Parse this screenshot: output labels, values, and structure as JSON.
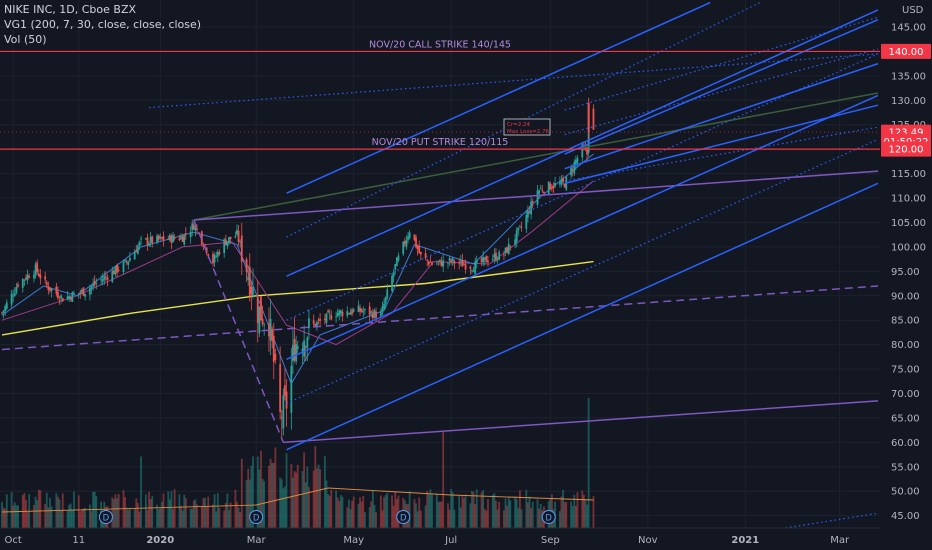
{
  "legend": {
    "line1": "NIKE INC, 1D, Cboe BZX",
    "line2": "VG1 (200, 7, 30, close, close, close)",
    "line3": "Vol (50)"
  },
  "annotations": {
    "call_strike": "NOV/20 CALL STRIKE 140/145",
    "put_strike": "NOV/20 PUT STRIKE 120/115",
    "box_line1": "Cr=2.24",
    "box_line2": "Max Loss=2.76"
  },
  "colors": {
    "background": "#131722",
    "grid": "#1e222d",
    "up": "#26a69a",
    "down": "#ef5350",
    "channel": "#2962ff",
    "channel_light": "#3d7bff",
    "purple": "#7e57c2",
    "olive": "#3b5f3b",
    "ma_yellow": "#e6e34a",
    "ma_magenta": "#9c3d8a",
    "ma_blue": "#3a7bd5",
    "strike_red": "#f23645",
    "price_label": "#f23645",
    "volume_ma": "#e08a3c",
    "axis_text": "#b2b5be"
  },
  "chart_data": {
    "type": "candlestick",
    "symbol": "NIKE INC",
    "interval": "1D",
    "exchange": "Cboe BZX",
    "currency": "USD",
    "x_tick_labels": [
      "Oct",
      "11",
      "2020",
      "Mar",
      "May",
      "Jul",
      "Sep",
      "Nov",
      "2021",
      "Mar"
    ],
    "y_tick_labels": [
      "145.00",
      "140.00",
      "135.00",
      "130.00",
      "125.00",
      "120.00",
      "115.00",
      "110.00",
      "105.00",
      "100.00",
      "95.00",
      "90.00",
      "85.00",
      "80.00",
      "75.00",
      "70.00",
      "65.00",
      "60.00",
      "55.00",
      "50.00",
      "45.00"
    ],
    "y_range": [
      43.5,
      149.5
    ],
    "price_labels": [
      {
        "text": "140.00",
        "value": 140.0
      },
      {
        "text": "123.49",
        "value": 123.49
      },
      {
        "text": "01:50:22",
        "value": 121.6
      },
      {
        "text": "120.00",
        "value": 120.0
      }
    ],
    "strike_lines": [
      140.0,
      120.0
    ],
    "dividend_marker": "D",
    "dividend_markers_at": [
      "2019-11-28",
      "2020-03-01",
      "2020-06-01",
      "2020-08-31"
    ],
    "close_path": [
      [
        "2019-09-24",
        86.5
      ],
      [
        "2019-10-04",
        92.5
      ],
      [
        "2019-10-15",
        95.5
      ],
      [
        "2019-10-22",
        92.0
      ],
      [
        "2019-11-01",
        89.5
      ],
      [
        "2019-11-15",
        91.0
      ],
      [
        "2019-11-26",
        93.5
      ],
      [
        "2019-12-10",
        96.5
      ],
      [
        "2019-12-20",
        101.0
      ],
      [
        "2020-01-03",
        101.5
      ],
      [
        "2020-01-15",
        102.0
      ],
      [
        "2020-01-22",
        104.5
      ],
      [
        "2020-01-27",
        101.5
      ],
      [
        "2020-02-03",
        97.0
      ],
      [
        "2020-02-10",
        101.0
      ],
      [
        "2020-02-18",
        102.5
      ],
      [
        "2020-02-24",
        96.0
      ],
      [
        "2020-03-02",
        87.0
      ],
      [
        "2020-03-09",
        85.0
      ],
      [
        "2020-03-16",
        65.0
      ],
      [
        "2020-03-20",
        68.0
      ],
      [
        "2020-03-25",
        80.0
      ],
      [
        "2020-04-06",
        84.0
      ],
      [
        "2020-04-20",
        86.5
      ],
      [
        "2020-05-04",
        87.0
      ],
      [
        "2020-05-18",
        86.0
      ],
      [
        "2020-05-27",
        96.0
      ],
      [
        "2020-06-05",
        103.5
      ],
      [
        "2020-06-12",
        98.0
      ],
      [
        "2020-06-19",
        96.5
      ],
      [
        "2020-07-01",
        97.0
      ],
      [
        "2020-07-15",
        96.0
      ],
      [
        "2020-07-24",
        97.5
      ],
      [
        "2020-08-03",
        98.5
      ],
      [
        "2020-08-14",
        104.0
      ],
      [
        "2020-08-24",
        111.5
      ],
      [
        "2020-09-01",
        112.5
      ],
      [
        "2020-09-10",
        113.0
      ],
      [
        "2020-09-16",
        117.0
      ],
      [
        "2020-09-21",
        120.0
      ],
      [
        "2020-09-24",
        119.0
      ],
      [
        "2020-09-25",
        129.5
      ],
      [
        "2020-09-28",
        123.49
      ]
    ],
    "moving_averages": [
      {
        "name": "VG1 200",
        "color": "#e6e34a",
        "points": [
          [
            "2019-09-24",
            82.0
          ],
          [
            "2019-12-15",
            86.5
          ],
          [
            "2020-03-01",
            90.0
          ],
          [
            "2020-06-15",
            92.5
          ],
          [
            "2020-09-28",
            97.0
          ]
        ]
      },
      {
        "name": "VG1 30",
        "color": "#9c3d8a",
        "points": [
          [
            "2019-09-24",
            85.0
          ],
          [
            "2019-11-10",
            90.0
          ],
          [
            "2020-01-15",
            100.0
          ],
          [
            "2020-02-15",
            101.0
          ],
          [
            "2020-03-20",
            84.0
          ],
          [
            "2020-04-20",
            80.0
          ],
          [
            "2020-05-25",
            86.5
          ],
          [
            "2020-06-20",
            97.0
          ],
          [
            "2020-07-25",
            96.5
          ],
          [
            "2020-08-20",
            103.0
          ],
          [
            "2020-09-28",
            113.5
          ]
        ]
      },
      {
        "name": "VG1 7",
        "color": "#3a7bd5",
        "points": [
          [
            "2019-09-24",
            86.0
          ],
          [
            "2019-10-20",
            92.0
          ],
          [
            "2019-11-10",
            90.0
          ],
          [
            "2019-12-20",
            100.0
          ],
          [
            "2020-01-22",
            103.0
          ],
          [
            "2020-02-18",
            100.5
          ],
          [
            "2020-03-23",
            72.0
          ],
          [
            "2020-04-10",
            82.0
          ],
          [
            "2020-05-20",
            87.0
          ],
          [
            "2020-06-08",
            100.5
          ],
          [
            "2020-07-15",
            96.5
          ],
          [
            "2020-08-25",
            110.0
          ],
          [
            "2020-09-28",
            119.0
          ]
        ]
      }
    ],
    "trendlines": [
      {
        "from": [
          "2020-01-22",
          105.5
        ],
        "to": [
          "2021-03-25",
          131.5
        ],
        "color": "#3b5f3b",
        "style": "solid"
      },
      {
        "from": [
          "2020-01-22",
          105.5
        ],
        "to": [
          "2021-03-25",
          115.5
        ],
        "color": "#7e57c2",
        "style": "solid"
      },
      {
        "from": [
          "2020-01-22",
          105.5
        ],
        "to": [
          "2020-03-18",
          60.0
        ],
        "color": "#7e57c2",
        "style": "dashed"
      },
      {
        "from": [
          "2020-03-18",
          60.0
        ],
        "to": [
          "2021-03-25",
          68.5
        ],
        "color": "#7e57c2",
        "style": "solid"
      },
      {
        "from": [
          "2019-09-24",
          79.0
        ],
        "to": [
          "2021-03-25",
          92.0
        ],
        "color": "#7e57c2",
        "style": "dashed"
      },
      {
        "from": [
          "2020-03-20",
          58.5
        ],
        "to": [
          "2021-03-25",
          113.0
        ],
        "color": "#2962ff",
        "style": "solid"
      },
      {
        "from": [
          "2020-03-20",
          77.0
        ],
        "to": [
          "2021-03-25",
          131.0
        ],
        "color": "#2962ff",
        "style": "solid"
      },
      {
        "from": [
          "2020-03-20",
          94.0
        ],
        "to": [
          "2021-03-25",
          148.5
        ],
        "color": "#2962ff",
        "style": "solid"
      },
      {
        "from": [
          "2020-03-20",
          111.0
        ],
        "to": [
          "2020-12-10",
          150.0
        ],
        "color": "#2962ff",
        "style": "solid"
      },
      {
        "from": [
          "2020-03-20",
          68.0
        ],
        "to": [
          "2021-03-25",
          122.0
        ],
        "color": "#2962ff",
        "style": "dotted"
      },
      {
        "from": [
          "2020-03-20",
          85.0
        ],
        "to": [
          "2021-03-25",
          139.5
        ],
        "color": "#2962ff",
        "style": "dotted"
      },
      {
        "from": [
          "2020-03-20",
          102.0
        ],
        "to": [
          "2021-01-10",
          150.0
        ],
        "color": "#2962ff",
        "style": "dotted"
      },
      {
        "from": [
          "2020-09-10",
          113.0
        ],
        "to": [
          "2021-03-25",
          129.0
        ],
        "color": "#2962ff",
        "style": "solid"
      },
      {
        "from": [
          "2020-09-10",
          116.0
        ],
        "to": [
          "2021-03-25",
          137.5
        ],
        "color": "#2962ff",
        "style": "solid"
      },
      {
        "from": [
          "2020-09-10",
          119.0
        ],
        "to": [
          "2021-03-25",
          146.5
        ],
        "color": "#2962ff",
        "style": "solid"
      },
      {
        "from": [
          "2020-09-10",
          113.5
        ],
        "to": [
          "2021-03-25",
          124.5
        ],
        "color": "#2962ff",
        "style": "dotted"
      },
      {
        "from": [
          "2020-09-10",
          123.0
        ],
        "to": [
          "2021-03-25",
          140.5
        ],
        "color": "#2962ff",
        "style": "dotted"
      },
      {
        "from": [
          "2020-09-10",
          128.0
        ],
        "to": [
          "2021-03-25",
          147.0
        ],
        "color": "#2962ff",
        "style": "dotted"
      },
      {
        "from": [
          "2019-12-25",
          128.5
        ],
        "to": [
          "2021-03-25",
          139.5
        ],
        "color": "#2962ff",
        "style": "dotted"
      },
      {
        "from": [
          "2020-11-01",
          38.0
        ],
        "to": [
          "2021-03-25",
          45.5
        ],
        "color": "#2962ff",
        "style": "dotted"
      }
    ],
    "volume": {
      "peaks": [
        {
          "date": "2019-12-20",
          "height": 0.55
        },
        {
          "date": "2020-03-13",
          "height": 0.62
        },
        {
          "date": "2020-06-26",
          "height": 0.75
        },
        {
          "date": "2020-09-25",
          "height": 1.0
        }
      ]
    }
  }
}
